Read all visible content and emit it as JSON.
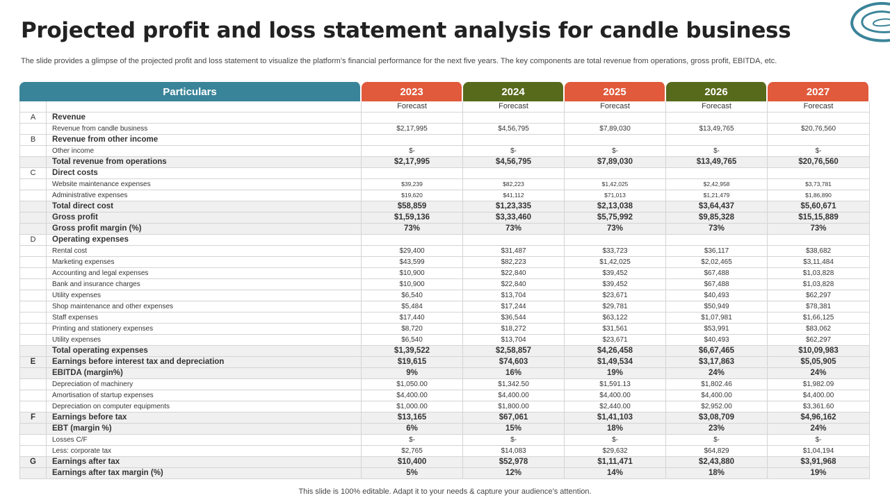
{
  "title": "Projected profit and loss statement analysis for candle business",
  "subtitle": "The slide provides a glimpse of the projected profit and loss statement to visualize the platform’s financial performance for the next five years. The key components are total revenue from operations, gross profit, EBITDA,  etc.",
  "footer": "This slide is 100% editable. Adapt it to your needs & capture your audience’s attention.",
  "colors": {
    "teal": "#3a8499",
    "red": "#e05a3b",
    "green": "#576a1c"
  },
  "table": {
    "header_label": "Particulars",
    "years": [
      {
        "label": "2023",
        "color": "red"
      },
      {
        "label": "2024",
        "color": "green"
      },
      {
        "label": "2025",
        "color": "red"
      },
      {
        "label": "2026",
        "color": "green"
      },
      {
        "label": "2027",
        "color": "red"
      }
    ],
    "rows": [
      {
        "code": "",
        "label": "",
        "style": "forecast",
        "values": [
          "Forecast",
          "Forecast",
          "Forecast",
          "Forecast",
          "Forecast"
        ]
      },
      {
        "code": "A",
        "label": "Revenue",
        "style": "header",
        "values": [
          "",
          "",
          "",
          "",
          ""
        ]
      },
      {
        "code": "",
        "label": "Revenue from candle business",
        "style": "normal",
        "values": [
          "$2,17,995",
          "$4,56,795",
          "$7,89,030",
          "$13,49,765",
          "$20,76,560"
        ]
      },
      {
        "code": "B",
        "label": "Revenue from other income",
        "style": "header",
        "values": [
          "",
          "",
          "",
          "",
          ""
        ]
      },
      {
        "code": "",
        "label": "Other income",
        "style": "normal",
        "values": [
          "$-",
          "$-",
          "$-",
          "$-",
          "$-"
        ]
      },
      {
        "code": "",
        "label": "Total revenue from operations",
        "style": "bold",
        "values": [
          "$2,17,995",
          "$4,56,795",
          "$7,89,030",
          "$13,49,765",
          "$20,76,560"
        ]
      },
      {
        "code": "C",
        "label": "Direct costs",
        "style": "header",
        "values": [
          "",
          "",
          "",
          "",
          ""
        ]
      },
      {
        "code": "",
        "label": "Website maintenance expenses",
        "style": "small",
        "values": [
          "$39,239",
          "$82,223",
          "$1,42,025",
          "$2,42,958",
          "$3,73,781"
        ]
      },
      {
        "code": "",
        "label": "Administrative expenses",
        "style": "small",
        "values": [
          "$19,620",
          "$41,112",
          "$71,013",
          "$1,21,479",
          "$1,86,890"
        ]
      },
      {
        "code": "",
        "label": " Total direct cost",
        "style": "bold",
        "values": [
          "$58,859",
          "$1,23,335",
          "$2,13,038",
          "$3,64,437",
          "$5,60,671"
        ]
      },
      {
        "code": "",
        "label": "Gross profit",
        "style": "bold",
        "values": [
          "$1,59,136",
          "$3,33,460",
          "$5,75,992",
          "$9,85,328",
          "$15,15,889"
        ]
      },
      {
        "code": "",
        "label": "Gross profit margin (%)",
        "style": "bold",
        "values": [
          "73%",
          "73%",
          "73%",
          "73%",
          "73%"
        ]
      },
      {
        "code": "D",
        "label": "Operating expenses",
        "style": "header",
        "values": [
          "",
          "",
          "",
          "",
          ""
        ]
      },
      {
        "code": "",
        "label": "Rental cost",
        "style": "normal",
        "values": [
          "$29,400",
          "$31,487",
          "$33,723",
          "$36,117",
          "$38,682"
        ]
      },
      {
        "code": "",
        "label": "Marketing expenses",
        "style": "normal",
        "values": [
          "$43,599",
          "$82,223",
          "$1,42,025",
          "$2,02,465",
          "$3,11,484"
        ]
      },
      {
        "code": "",
        "label": "Accounting and legal expenses",
        "style": "normal",
        "values": [
          "$10,900",
          "$22,840",
          "$39,452",
          "$67,488",
          "$1,03,828"
        ]
      },
      {
        "code": "",
        "label": "Bank and insurance charges",
        "style": "normal",
        "values": [
          "$10,900",
          "$22,840",
          "$39,452",
          "$67,488",
          "$1,03,828"
        ]
      },
      {
        "code": "",
        "label": "Utility expenses",
        "style": "normal",
        "values": [
          "$6,540",
          "$13,704",
          "$23,671",
          "$40,493",
          "$62,297"
        ]
      },
      {
        "code": "",
        "label": "Shop maintenance and other expenses",
        "style": "normal",
        "values": [
          "$5,484",
          "$17,244",
          "$29,781",
          "$50,949",
          "$78,381"
        ]
      },
      {
        "code": "",
        "label": "Staff expenses",
        "style": "normal",
        "values": [
          "$17,440",
          "$36,544",
          "$63,122",
          "$1,07,981",
          "$1,66,125"
        ]
      },
      {
        "code": "",
        "label": "Printing and stationery expenses",
        "style": "normal",
        "values": [
          "$8,720",
          "$18,272",
          "$31,561",
          "$53,991",
          "$83,062"
        ]
      },
      {
        "code": "",
        "label": "Utility expenses",
        "style": "normal",
        "values": [
          "$6,540",
          "$13,704",
          "$23,671",
          "$40,493",
          "$62,297"
        ]
      },
      {
        "code": "",
        "label": "Total operating expenses",
        "style": "bold",
        "values": [
          "$1,39,522",
          "$2,58,857",
          "$4,26,458",
          "$6,67,465",
          "$10,09,983"
        ]
      },
      {
        "code": "E",
        "label": "Earnings before interest tax and depreciation",
        "style": "bold",
        "values": [
          "$19,615",
          "$74,603",
          "$1,49,534",
          "$3,17,863",
          "$5,05,905"
        ]
      },
      {
        "code": "",
        "label": "EBITDA  (margin%)",
        "style": "bold",
        "values": [
          "9%",
          "16%",
          "19%",
          "24%",
          "24%"
        ]
      },
      {
        "code": "",
        "label": "Depreciation of machinery",
        "style": "normal",
        "values": [
          "$1,050.00",
          "$1,342.50",
          "$1,591.13",
          "$1,802.46",
          "$1,982.09"
        ]
      },
      {
        "code": "",
        "label": "Amortisation of startup expenses",
        "style": "normal",
        "values": [
          "$4,400.00",
          "$4,400.00",
          "$4,400.00",
          "$4,400.00",
          "$4,400.00"
        ]
      },
      {
        "code": "",
        "label": "Depreciation on computer equipments",
        "style": "normal",
        "values": [
          "$1,000.00",
          "$1,800.00",
          "$2,440.00",
          "$2,952.00",
          "$3,361.60"
        ]
      },
      {
        "code": "F",
        "label": "Earnings before tax",
        "style": "bold",
        "values": [
          "$13,165",
          "$67,061",
          "$1,41,103",
          "$3,08,709",
          "$4,96,162"
        ]
      },
      {
        "code": "",
        "label": "EBT (margin %)",
        "style": "bold",
        "values": [
          "6%",
          "15%",
          "18%",
          "23%",
          "24%"
        ]
      },
      {
        "code": "",
        "label": "Losses C/F",
        "style": "normal",
        "values": [
          "$-",
          "$-",
          "$-",
          "$-",
          "$-"
        ]
      },
      {
        "code": "",
        "label": "Less: corporate tax",
        "style": "normal",
        "values": [
          "$2,765",
          "$14,083",
          "$29,632",
          "$64,829",
          "$1,04,194"
        ]
      },
      {
        "code": "G",
        "label": "Earnings after tax",
        "style": "bold",
        "values": [
          "$10,400",
          "$52,978",
          "$1,11,471",
          "$2,43,880",
          "$3,91,968"
        ]
      },
      {
        "code": "",
        "label": "Earnings after tax margin (%)",
        "style": "bold",
        "values": [
          "5%",
          "12%",
          "14%",
          "18%",
          "19%"
        ]
      }
    ]
  }
}
